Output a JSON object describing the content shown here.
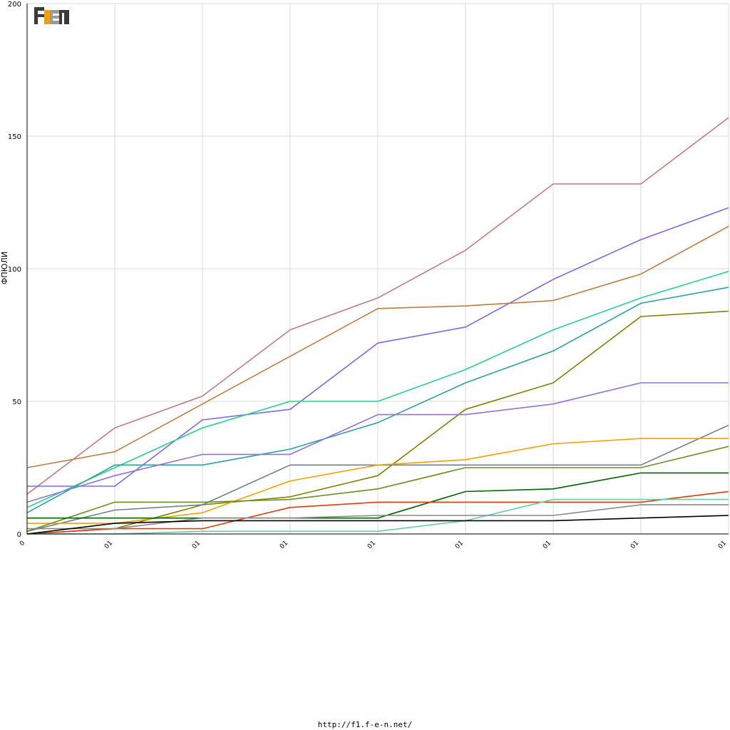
{
  "logo": {
    "text": "F1EN",
    "accent": "#f5a000",
    "dark": "#3a3a3a",
    "light": "#9a9a9a"
  },
  "footer": {
    "url": "http://f1.f-e-n.net/"
  },
  "colors": {
    "grid": "#d8d8d8",
    "axis": "#000000",
    "background": "#ffffff"
  },
  "chart_data": {
    "type": "line",
    "title": "",
    "xlabel": "",
    "ylabel": "ФПЮЛИ",
    "ylim": [
      0,
      200
    ],
    "yticks": [
      0,
      50,
      100,
      150,
      200
    ],
    "grid": true,
    "legend": "none",
    "categories": [
      "0",
      "01",
      "01",
      "01",
      "01",
      "01",
      "01",
      "01",
      "01"
    ],
    "series": [
      {
        "color": "#c07c82",
        "values": [
          15,
          40,
          52,
          77,
          89,
          107,
          132,
          132,
          157
        ]
      },
      {
        "color": "#7b68ee",
        "values": [
          18,
          18,
          43,
          47,
          72,
          78,
          96,
          111,
          123
        ]
      },
      {
        "color": "#c07c40",
        "values": [
          25,
          31,
          49,
          67,
          85,
          86,
          88,
          98,
          116
        ]
      },
      {
        "color": "#22d48a",
        "values": [
          10,
          25,
          40,
          50,
          50,
          62,
          77,
          89,
          99
        ]
      },
      {
        "color": "#2aa0a0",
        "values": [
          8,
          26,
          26,
          32,
          42,
          57,
          69,
          87,
          93
        ]
      },
      {
        "color": "#808000",
        "values": [
          0,
          2,
          11,
          14,
          22,
          47,
          57,
          82,
          84
        ]
      },
      {
        "color": "#9370db",
        "values": [
          12,
          22,
          30,
          30,
          45,
          45,
          49,
          57,
          57
        ]
      },
      {
        "color": "#708090",
        "values": [
          1,
          9,
          11,
          26,
          26,
          26,
          26,
          26,
          41
        ]
      },
      {
        "color": "#f5a000",
        "values": [
          4,
          4,
          8,
          20,
          26,
          28,
          34,
          36,
          36
        ]
      },
      {
        "color": "#6b8e23",
        "values": [
          1,
          12,
          12,
          13,
          17,
          25,
          25,
          25,
          33
        ]
      },
      {
        "color": "#006400",
        "values": [
          6,
          6,
          6,
          6,
          6,
          16,
          17,
          23,
          23
        ]
      },
      {
        "color": "#e03c00",
        "values": [
          0,
          2,
          2,
          10,
          12,
          12,
          12,
          12,
          16
        ]
      },
      {
        "color": "#66cdaa",
        "values": [
          0,
          0,
          1,
          1,
          1,
          5,
          13,
          13,
          13
        ]
      },
      {
        "color": "#888888",
        "values": [
          2,
          2,
          6,
          6,
          7,
          7,
          7,
          11,
          11
        ]
      },
      {
        "color": "#000000",
        "values": [
          0,
          4,
          5,
          5,
          5,
          5,
          5,
          6,
          7
        ]
      }
    ]
  }
}
